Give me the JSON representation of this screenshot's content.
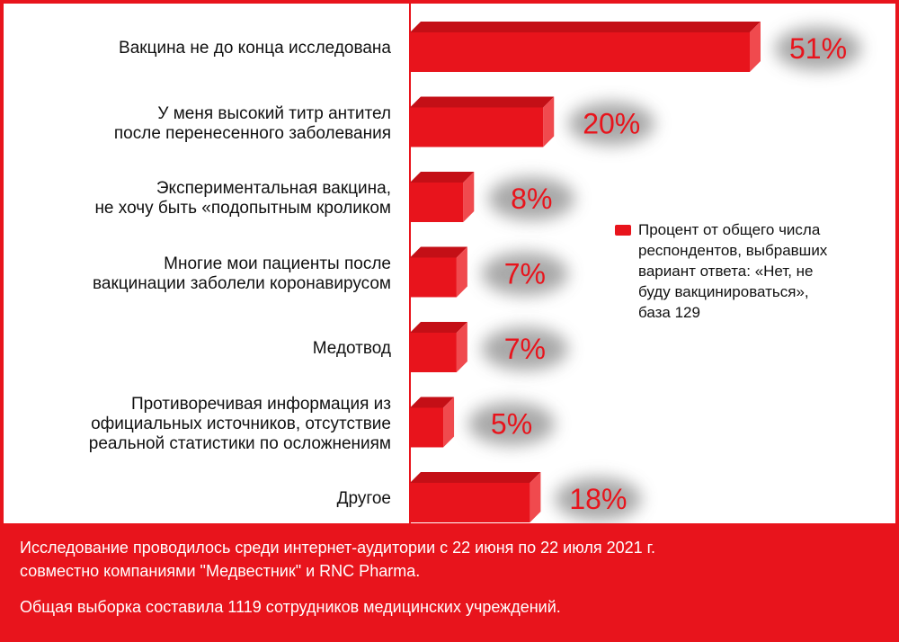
{
  "chart_data": {
    "type": "bar",
    "orientation": "horizontal",
    "categories": [
      "Вакцина не до конца исследована",
      "У меня высокий титр антител\nпосле перенесенного заболевания",
      "Экспериментальная вакцина,\nне хочу быть «подопытным кроликом",
      "Многие мои пациенты после\nвакцинации заболели коронавирусом",
      "Медотвод",
      "Противоречивая информация из\nофициальных источников, отсутствие\nреальной статистики по осложнениям",
      "Другое"
    ],
    "values": [
      51,
      20,
      8,
      7,
      7,
      5,
      18
    ],
    "value_labels": [
      "51%",
      "20%",
      "8%",
      "7%",
      "7%",
      "5%",
      "18%"
    ],
    "series": [
      {
        "name": "Процент от общего числа\nреспондентов, выбравших\nвариант ответа: «Нет, не\nбуду вакцинироваться»,\nбаза 129",
        "values": [
          51,
          20,
          8,
          7,
          7,
          5,
          18
        ]
      }
    ],
    "xlim": [
      0,
      55
    ],
    "legend_position": "right",
    "grid": false,
    "bar_color": "#e8141c"
  },
  "footer": {
    "line1": "Исследование проводилось среди интернет-аудитории с 22 июня по 22 июля 2021 г.",
    "line2": "совместно компаниями \"Медвестник\" и RNC Pharma.",
    "line3": "Общая выборка составила 1119 сотрудников медицинских учреждений."
  }
}
